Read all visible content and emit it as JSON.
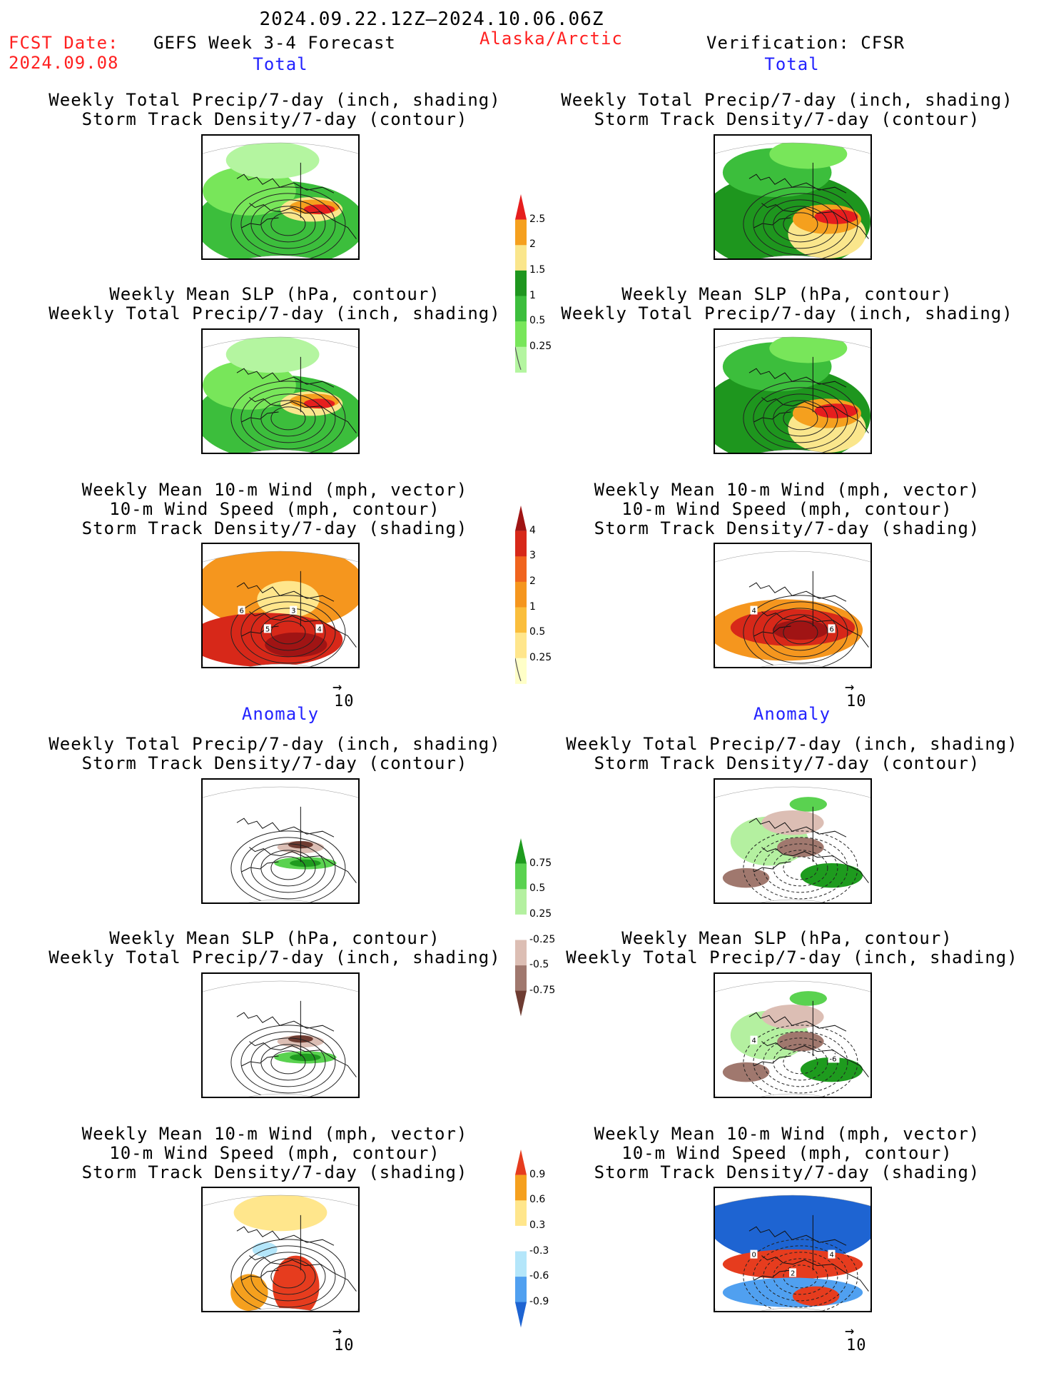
{
  "header": {
    "date_range": "2024.09.22.12Z–2024.10.06.06Z",
    "fcst_label": "FCST Date:",
    "fcst_date": "2024.09.08",
    "product": "GEFS Week 3-4 Forecast",
    "region": "Alaska/Arctic",
    "verification": "Verification: CFSR"
  },
  "sections": {
    "total_left": "Total",
    "total_right": "Total",
    "anomaly_left": "Anomaly",
    "anomaly_right": "Anomaly"
  },
  "titles": {
    "precip_std_1": "Weekly Total Precip/7-day (inch, shading)",
    "precip_std_2": "Storm Track Density/7-day (contour)",
    "slp_1": "Weekly Mean SLP (hPa, contour)",
    "slp_2": "Weekly Total Precip/7-day (inch, shading)",
    "wind_1": "Weekly Mean 10-m Wind (mph, vector)",
    "wind_2": "10-m Wind Speed (mph, contour)",
    "wind_3": "Storm Track Density/7-day (shading)"
  },
  "vector_ref": "10",
  "colorbars": {
    "precip_total": {
      "colors": [
        "#b4f5a0",
        "#78e65a",
        "#3cbe3c",
        "#1e961e",
        "#fae68c",
        "#f5a01e",
        "#e61e1e"
      ],
      "labels": [
        "0.25",
        "0.5",
        "1",
        "1.5",
        "2",
        "2.5"
      ]
    },
    "std_total": {
      "colors": [
        "#ffffc8",
        "#ffe68c",
        "#fabe3c",
        "#f5961e",
        "#f0641e",
        "#d72819",
        "#a01414"
      ],
      "labels": [
        "0.25",
        "0.5",
        "1",
        "2",
        "3",
        "4"
      ]
    },
    "precip_anom": {
      "colors": [
        "#6e3c32",
        "#a0786e",
        "#dcbeb4",
        "#ffffff",
        "#b4f0a0",
        "#5ad250",
        "#1e9b1e"
      ],
      "labels": [
        "-0.75",
        "-0.5",
        "-0.25",
        "0.25",
        "0.5",
        "0.75"
      ]
    },
    "std_anom": {
      "colors": [
        "#1e64d2",
        "#50a0f0",
        "#b4e6fa",
        "#ffffff",
        "#ffe68c",
        "#f5a01e",
        "#e63c1e"
      ],
      "labels": [
        "-0.9",
        "-0.6",
        "-0.3",
        "0.3",
        "0.6",
        "0.9"
      ]
    }
  },
  "map_labels": {
    "fcst_wind_total": [
      "6",
      "5",
      "3",
      "4"
    ],
    "obs_wind_total": [
      "4",
      "6"
    ],
    "obs_slp_anom": [
      "4",
      "-6"
    ],
    "obs_wind_anom": [
      "0",
      "2",
      "4"
    ]
  }
}
